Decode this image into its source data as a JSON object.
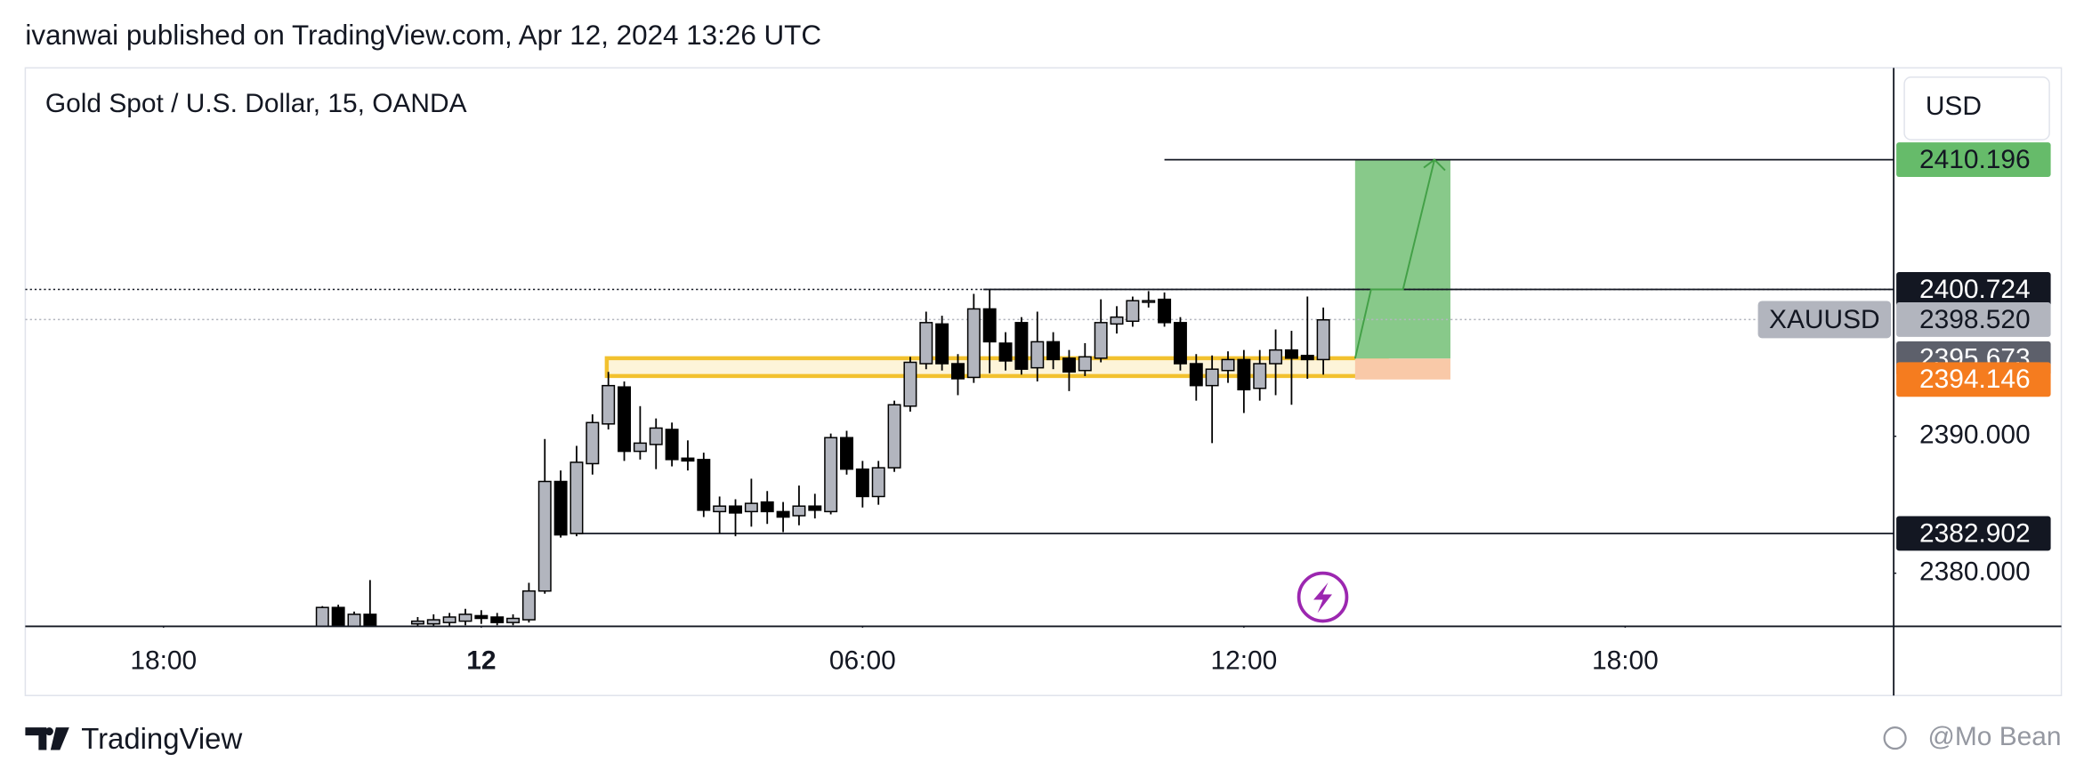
{
  "header": {
    "publisher": "ivanwai published on TradingView.com, Apr 12, 2024 13:26 UTC",
    "brand": "TradingView",
    "watermark": "@Mo Bean"
  },
  "chart_data": {
    "type": "candlestick",
    "title": "Gold Spot / U.S. Dollar, 15, OANDA",
    "currency": "USD",
    "symbol": "XAUUSD",
    "up_color": "#b2b5be",
    "down_color": "#000000",
    "xlim": [
      -18.7,
      98.9
    ],
    "ylim": [
      2376.12,
      2416.9
    ],
    "xticks": [
      {
        "value": -10,
        "label": "18:00"
      },
      {
        "value": 10,
        "label": "12",
        "bold": true
      },
      {
        "value": 34,
        "label": "06:00"
      },
      {
        "value": 58,
        "label": "12:00"
      },
      {
        "value": 82,
        "label": "18:00"
      }
    ],
    "yticks": [
      {
        "value": 2380,
        "label": "2380.000"
      },
      {
        "value": 2390,
        "label": "2390.000"
      }
    ],
    "x": [
      0,
      1,
      2,
      3,
      6,
      7,
      8,
      9,
      10,
      11,
      12,
      13,
      14,
      15,
      16,
      17,
      18,
      19,
      20,
      21,
      22,
      23,
      24,
      25,
      26,
      27,
      28,
      29,
      30,
      31,
      32,
      33,
      34,
      35,
      36,
      37,
      38,
      39,
      40,
      41,
      42,
      43,
      44,
      45,
      46,
      47,
      48,
      49,
      50,
      51,
      52,
      53,
      54,
      55,
      56,
      57,
      58,
      59,
      60,
      61,
      62,
      63
    ],
    "open": [
      2375.8,
      2377.5,
      2375.9,
      2377.0,
      2376.3,
      2376.3,
      2376.4,
      2376.5,
      2376.9,
      2376.8,
      2376.4,
      2376.6,
      2378.7,
      2386.7,
      2382.9,
      2388.0,
      2390.9,
      2393.6,
      2388.9,
      2389.4,
      2390.5,
      2388.4,
      2388.3,
      2384.5,
      2384.9,
      2384.5,
      2385.2,
      2384.5,
      2384.2,
      2384.9,
      2384.5,
      2389.9,
      2387.6,
      2385.6,
      2387.7,
      2392.2,
      2395.3,
      2398.2,
      2395.3,
      2394.3,
      2399.3,
      2396.8,
      2398.3,
      2395.0,
      2396.9,
      2395.7,
      2394.8,
      2395.7,
      2398.2,
      2398.4,
      2399.8,
      2400.0,
      2398.3,
      2395.3,
      2393.7,
      2394.8,
      2395.6,
      2393.5,
      2395.3,
      2396.3,
      2395.9,
      2395.6
    ],
    "high": [
      2377.6,
      2377.7,
      2377.2,
      2379.5,
      2376.8,
      2377.0,
      2377.1,
      2377.4,
      2377.3,
      2377.1,
      2377.0,
      2379.3,
      2389.8,
      2387.5,
      2389.3,
      2391.6,
      2394.7,
      2394.0,
      2392.2,
      2391.3,
      2391.0,
      2389.7,
      2388.8,
      2385.6,
      2385.4,
      2386.9,
      2386.0,
      2385.2,
      2386.4,
      2385.8,
      2390.2,
      2390.4,
      2388.2,
      2388.2,
      2392.6,
      2395.8,
      2399.1,
      2398.8,
      2396.0,
      2400.4,
      2400.7,
      2397.6,
      2398.7,
      2399.1,
      2397.6,
      2396.3,
      2396.8,
      2400.0,
      2399.5,
      2400.2,
      2400.6,
      2400.5,
      2398.7,
      2396.0,
      2395.9,
      2396.2,
      2396.3,
      2396.3,
      2397.8,
      2397.7,
      2400.2,
      2399.4
    ],
    "low": [
      2375.5,
      2375.5,
      2375.6,
      2375.6,
      2376.0,
      2376.0,
      2376.1,
      2376.2,
      2376.3,
      2376.2,
      2376.2,
      2376.4,
      2378.5,
      2382.6,
      2382.7,
      2387.2,
      2390.5,
      2388.2,
      2388.3,
      2387.6,
      2387.8,
      2387.5,
      2384.1,
      2382.9,
      2382.7,
      2383.4,
      2383.6,
      2383.0,
      2383.5,
      2384.0,
      2384.3,
      2387.2,
      2384.8,
      2385.0,
      2387.4,
      2391.8,
      2394.9,
      2394.8,
      2393.0,
      2393.9,
      2394.6,
      2394.8,
      2394.5,
      2394.0,
      2394.9,
      2393.3,
      2394.4,
      2395.4,
      2397.5,
      2398.0,
      2399.4,
      2398.0,
      2394.8,
      2392.6,
      2389.5,
      2393.9,
      2391.7,
      2392.6,
      2393.0,
      2392.3,
      2394.2,
      2394.5
    ],
    "close": [
      2377.5,
      2376.0,
      2377.0,
      2376.0,
      2376.5,
      2376.6,
      2376.8,
      2377.0,
      2376.7,
      2376.4,
      2376.7,
      2378.7,
      2386.7,
      2382.8,
      2388.1,
      2391.0,
      2393.7,
      2388.9,
      2389.5,
      2390.6,
      2388.3,
      2388.2,
      2384.6,
      2384.9,
      2384.4,
      2385.1,
      2384.5,
      2384.1,
      2384.9,
      2384.6,
      2389.9,
      2387.6,
      2385.6,
      2387.7,
      2392.3,
      2395.4,
      2398.3,
      2395.3,
      2394.2,
      2399.3,
      2396.9,
      2395.5,
      2394.9,
      2396.9,
      2395.6,
      2394.7,
      2395.8,
      2398.3,
      2398.7,
      2399.9,
      2399.9,
      2398.3,
      2395.3,
      2393.7,
      2394.9,
      2395.6,
      2393.4,
      2395.3,
      2396.3,
      2395.7,
      2395.6,
      2398.5
    ],
    "zone": {
      "top": 2395.7,
      "bottom": 2394.4,
      "from": 17.9,
      "to": 67,
      "color": "#f2c12e"
    },
    "position": {
      "entry": 2395.673,
      "target": 2410.196,
      "stop": 2394.146,
      "from": 65,
      "to": 71,
      "profit_color": "#88c98a",
      "loss_color": "#f9c9a8"
    },
    "price_marks": [
      {
        "value": 2410.196,
        "label": "2410.196",
        "color": "#66bb6a",
        "line_from": 53
      },
      {
        "value": 2400.724,
        "label": "2400.724",
        "color": "#131722",
        "line_from": 41.6,
        "dotted": true
      },
      {
        "value": 2398.52,
        "label": "2398.520",
        "color": "#b2b5be",
        "dotted": true,
        "symbol_tag": true
      },
      {
        "value": 2395.673,
        "label": "2395.673",
        "color": "#5d606b"
      },
      {
        "value": 2394.146,
        "label": "2394.146",
        "color": "#f57c1f"
      },
      {
        "value": 2382.902,
        "label": "2382.902",
        "color": "#131722",
        "line_from": 16.1
      }
    ]
  }
}
